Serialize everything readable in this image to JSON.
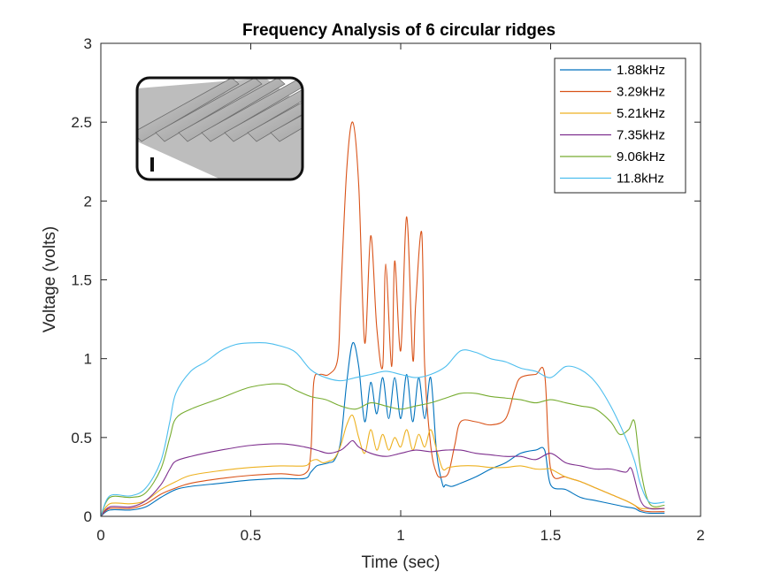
{
  "chart_data": {
    "type": "line",
    "title": "Frequency Analysis of 6 circular ridges",
    "xlabel": "Time (sec)",
    "ylabel": "Voltage (volts)",
    "xlim": [
      0,
      2
    ],
    "ylim": [
      0,
      3
    ],
    "xticks": [
      0,
      0.5,
      1,
      1.5,
      2
    ],
    "xtick_labels": [
      "0",
      "0.5",
      "1",
      "1.5",
      "2"
    ],
    "yticks": [
      0,
      0.5,
      1,
      1.5,
      2,
      2.5,
      3
    ],
    "ytick_labels": [
      "0",
      "0.5",
      "1",
      "1.5",
      "2",
      "2.5",
      "3"
    ],
    "grid": false,
    "legend_position": "top-right",
    "inset_image": "circular-ridges-profile",
    "series": [
      {
        "name": "1.88kHz",
        "color": "#0072BD",
        "x": [
          0,
          0.03,
          0.1,
          0.15,
          0.2,
          0.25,
          0.3,
          0.4,
          0.5,
          0.6,
          0.68,
          0.7,
          0.72,
          0.74,
          0.76,
          0.78,
          0.8,
          0.82,
          0.84,
          0.86,
          0.88,
          0.9,
          0.92,
          0.94,
          0.96,
          0.98,
          1.0,
          1.02,
          1.04,
          1.06,
          1.08,
          1.1,
          1.12,
          1.14,
          1.15,
          1.17,
          1.2,
          1.25,
          1.3,
          1.35,
          1.4,
          1.45,
          1.48,
          1.5,
          1.55,
          1.6,
          1.65,
          1.7,
          1.75,
          1.78,
          1.8,
          1.83,
          1.88
        ],
        "y": [
          0,
          0.04,
          0.04,
          0.06,
          0.12,
          0.17,
          0.19,
          0.21,
          0.23,
          0.24,
          0.24,
          0.28,
          0.32,
          0.33,
          0.34,
          0.36,
          0.48,
          0.85,
          1.1,
          0.95,
          0.6,
          0.85,
          0.65,
          0.88,
          0.62,
          0.88,
          0.62,
          0.9,
          0.6,
          0.88,
          0.62,
          0.88,
          0.4,
          0.2,
          0.2,
          0.19,
          0.21,
          0.25,
          0.3,
          0.34,
          0.4,
          0.42,
          0.42,
          0.2,
          0.17,
          0.12,
          0.1,
          0.08,
          0.06,
          0.05,
          0.03,
          0.02,
          0.02
        ]
      },
      {
        "name": "3.29kHz",
        "color": "#D95319",
        "x": [
          0,
          0.03,
          0.1,
          0.15,
          0.2,
          0.25,
          0.3,
          0.4,
          0.5,
          0.6,
          0.68,
          0.7,
          0.71,
          0.73,
          0.76,
          0.79,
          0.8,
          0.82,
          0.84,
          0.86,
          0.88,
          0.9,
          0.92,
          0.94,
          0.95,
          0.97,
          0.98,
          1.0,
          1.02,
          1.04,
          1.05,
          1.07,
          1.08,
          1.1,
          1.12,
          1.14,
          1.16,
          1.18,
          1.2,
          1.25,
          1.3,
          1.35,
          1.38,
          1.4,
          1.45,
          1.48,
          1.5,
          1.55,
          1.6,
          1.65,
          1.7,
          1.75,
          1.78,
          1.8,
          1.83,
          1.88
        ],
        "y": [
          0,
          0.05,
          0.05,
          0.08,
          0.14,
          0.18,
          0.21,
          0.24,
          0.26,
          0.27,
          0.27,
          0.4,
          0.85,
          0.9,
          0.9,
          1.0,
          1.4,
          2.2,
          2.5,
          2.1,
          1.1,
          1.78,
          1.2,
          0.95,
          1.6,
          0.95,
          1.62,
          1.05,
          1.9,
          1.0,
          1.35,
          1.8,
          0.95,
          0.45,
          0.27,
          0.25,
          0.28,
          0.45,
          0.6,
          0.6,
          0.58,
          0.62,
          0.8,
          0.88,
          0.9,
          0.9,
          0.3,
          0.25,
          0.22,
          0.18,
          0.14,
          0.1,
          0.07,
          0.04,
          0.03,
          0.03
        ]
      },
      {
        "name": "5.21kHz",
        "color": "#EDB120",
        "x": [
          0,
          0.03,
          0.1,
          0.15,
          0.2,
          0.25,
          0.3,
          0.4,
          0.5,
          0.6,
          0.68,
          0.7,
          0.72,
          0.74,
          0.76,
          0.78,
          0.8,
          0.82,
          0.84,
          0.86,
          0.88,
          0.9,
          0.92,
          0.94,
          0.96,
          0.98,
          1.0,
          1.02,
          1.04,
          1.06,
          1.08,
          1.1,
          1.12,
          1.14,
          1.16,
          1.2,
          1.25,
          1.3,
          1.35,
          1.4,
          1.45,
          1.48,
          1.5,
          1.55,
          1.6,
          1.65,
          1.7,
          1.75,
          1.78,
          1.8,
          1.83,
          1.88
        ],
        "y": [
          0,
          0.08,
          0.08,
          0.1,
          0.17,
          0.22,
          0.26,
          0.29,
          0.31,
          0.32,
          0.32,
          0.35,
          0.36,
          0.34,
          0.35,
          0.37,
          0.45,
          0.58,
          0.64,
          0.5,
          0.4,
          0.55,
          0.42,
          0.52,
          0.42,
          0.5,
          0.44,
          0.55,
          0.42,
          0.52,
          0.44,
          0.55,
          0.42,
          0.3,
          0.31,
          0.32,
          0.32,
          0.31,
          0.31,
          0.32,
          0.3,
          0.3,
          0.3,
          0.25,
          0.22,
          0.18,
          0.14,
          0.1,
          0.07,
          0.05,
          0.05,
          0.05
        ]
      },
      {
        "name": "7.35kHz",
        "color": "#7E2F8E",
        "x": [
          0,
          0.03,
          0.1,
          0.15,
          0.2,
          0.23,
          0.25,
          0.3,
          0.4,
          0.5,
          0.6,
          0.68,
          0.72,
          0.76,
          0.8,
          0.82,
          0.84,
          0.86,
          0.9,
          0.95,
          1.0,
          1.05,
          1.1,
          1.15,
          1.2,
          1.25,
          1.3,
          1.35,
          1.4,
          1.45,
          1.5,
          1.55,
          1.6,
          1.65,
          1.7,
          1.75,
          1.77,
          1.8,
          1.83,
          1.88
        ],
        "y": [
          0,
          0.06,
          0.06,
          0.1,
          0.2,
          0.3,
          0.35,
          0.38,
          0.42,
          0.45,
          0.46,
          0.44,
          0.42,
          0.4,
          0.42,
          0.45,
          0.48,
          0.44,
          0.4,
          0.38,
          0.4,
          0.42,
          0.41,
          0.42,
          0.42,
          0.4,
          0.39,
          0.38,
          0.38,
          0.36,
          0.4,
          0.34,
          0.32,
          0.3,
          0.3,
          0.28,
          0.3,
          0.1,
          0.05,
          0.05
        ]
      },
      {
        "name": "9.06kHz",
        "color": "#77AC30",
        "x": [
          0,
          0.03,
          0.1,
          0.15,
          0.2,
          0.23,
          0.25,
          0.3,
          0.4,
          0.5,
          0.6,
          0.65,
          0.7,
          0.75,
          0.8,
          0.85,
          0.9,
          0.95,
          1.0,
          1.05,
          1.1,
          1.15,
          1.2,
          1.25,
          1.3,
          1.35,
          1.4,
          1.45,
          1.5,
          1.55,
          1.6,
          1.65,
          1.7,
          1.73,
          1.76,
          1.78,
          1.8,
          1.83,
          1.88
        ],
        "y": [
          0,
          0.12,
          0.12,
          0.15,
          0.3,
          0.5,
          0.62,
          0.68,
          0.75,
          0.82,
          0.84,
          0.8,
          0.76,
          0.74,
          0.7,
          0.68,
          0.72,
          0.7,
          0.68,
          0.7,
          0.72,
          0.75,
          0.78,
          0.78,
          0.76,
          0.75,
          0.74,
          0.72,
          0.74,
          0.72,
          0.7,
          0.68,
          0.6,
          0.52,
          0.55,
          0.6,
          0.3,
          0.08,
          0.07
        ]
      },
      {
        "name": "11.8kHz",
        "color": "#4DBEEE",
        "x": [
          0,
          0.03,
          0.1,
          0.15,
          0.2,
          0.23,
          0.25,
          0.3,
          0.35,
          0.4,
          0.45,
          0.5,
          0.55,
          0.6,
          0.65,
          0.7,
          0.75,
          0.8,
          0.85,
          0.9,
          0.95,
          1.0,
          1.05,
          1.1,
          1.15,
          1.2,
          1.25,
          1.3,
          1.35,
          1.4,
          1.45,
          1.5,
          1.55,
          1.6,
          1.65,
          1.7,
          1.75,
          1.78,
          1.8,
          1.83,
          1.88
        ],
        "y": [
          0,
          0.13,
          0.13,
          0.18,
          0.35,
          0.6,
          0.78,
          0.92,
          0.98,
          1.05,
          1.09,
          1.1,
          1.1,
          1.08,
          1.04,
          0.93,
          0.88,
          0.86,
          0.88,
          0.9,
          0.92,
          0.9,
          0.88,
          0.9,
          0.95,
          1.05,
          1.04,
          1.0,
          0.98,
          0.94,
          0.92,
          0.88,
          0.95,
          0.93,
          0.85,
          0.7,
          0.5,
          0.35,
          0.2,
          0.09,
          0.09
        ]
      }
    ]
  }
}
